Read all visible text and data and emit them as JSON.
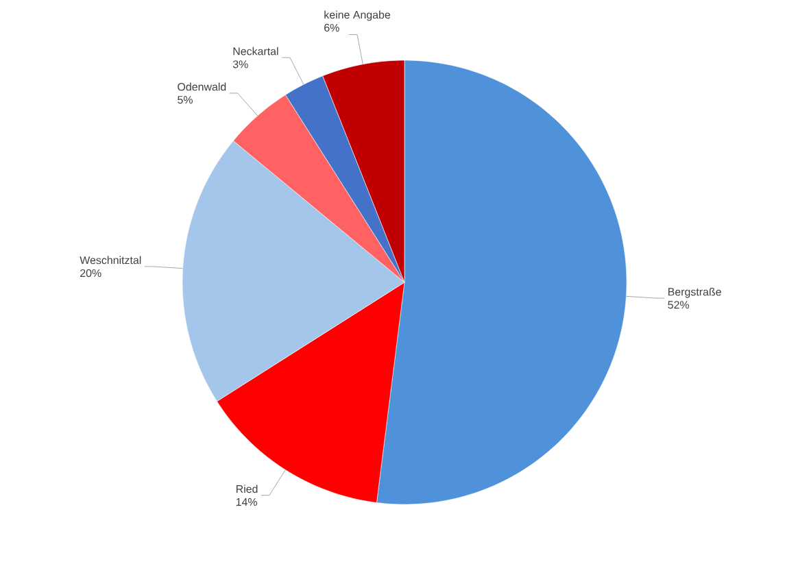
{
  "chart_data": {
    "type": "pie",
    "categories": [
      "Bergstraße",
      "Ried",
      "Weschnitztal",
      "Odenwald",
      "Neckartal",
      "keine Angabe"
    ],
    "values": [
      52,
      14,
      20,
      5,
      3,
      6
    ],
    "value_labels": [
      "52%",
      "14%",
      "20%",
      "5%",
      "3%",
      "6%"
    ],
    "colors": [
      "#4f92da",
      "#ff0000",
      "#a3c6ea",
      "#ff6262",
      "#4472c8",
      "#c00000"
    ]
  }
}
